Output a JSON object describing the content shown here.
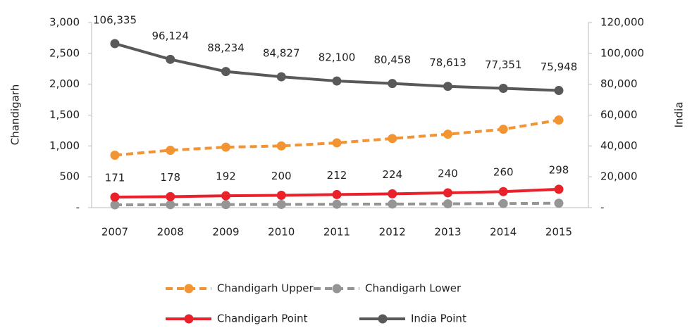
{
  "chart_data": {
    "type": "line",
    "categories": [
      "2007",
      "2008",
      "2009",
      "2010",
      "2011",
      "2012",
      "2013",
      "2014",
      "2015"
    ],
    "ylabel": "Chandigarh",
    "y2label": "India",
    "ylim": [
      0,
      3000
    ],
    "yticks": [
      {
        "value": 0,
        "label": "-"
      },
      500,
      {
        "value": 1000,
        "label": "1,000"
      },
      {
        "value": 1500,
        "label": "1,500"
      },
      {
        "value": 2000,
        "label": "2,000"
      },
      {
        "value": 2500,
        "label": "2,500"
      },
      {
        "value": 3000,
        "label": "3,000"
      }
    ],
    "y2lim": [
      0,
      120000
    ],
    "y2ticks": [
      {
        "value": 0,
        "label": "-"
      },
      {
        "value": 20000,
        "label": "20,000"
      },
      {
        "value": 40000,
        "label": "40,000"
      },
      {
        "value": 60000,
        "label": "60,000"
      },
      {
        "value": 80000,
        "label": "80,000"
      },
      {
        "value": 100000,
        "label": "100,000"
      },
      {
        "value": 120000,
        "label": "120,000"
      }
    ],
    "series": [
      {
        "name": "Chandigarh Upper",
        "color": "#f39433",
        "dashed": true,
        "values": [
          850,
          930,
          980,
          1000,
          1050,
          1120,
          1190,
          1270,
          1420
        ]
      },
      {
        "name": "Chandigarh Lower",
        "color": "#959595",
        "dashed": true,
        "values": [
          45,
          48,
          50,
          52,
          55,
          58,
          62,
          66,
          72
        ]
      },
      {
        "name": "Chandigarh Point",
        "color": "#e8212b",
        "dashed": false,
        "labels": true,
        "values": [
          171,
          178,
          192,
          200,
          212,
          224,
          240,
          260,
          298
        ]
      },
      {
        "name": "India Point",
        "color": "#595959",
        "dashed": false,
        "axis": "y2",
        "values": [
          106335,
          96124,
          88234,
          84827,
          82100,
          80458,
          78613,
          77351,
          75948
        ],
        "value_labels": [
          "106,335",
          "96,124",
          "88,234",
          "84,827",
          "82,100",
          "80,458",
          "78,613",
          "77,351",
          "75,948"
        ]
      }
    ]
  }
}
